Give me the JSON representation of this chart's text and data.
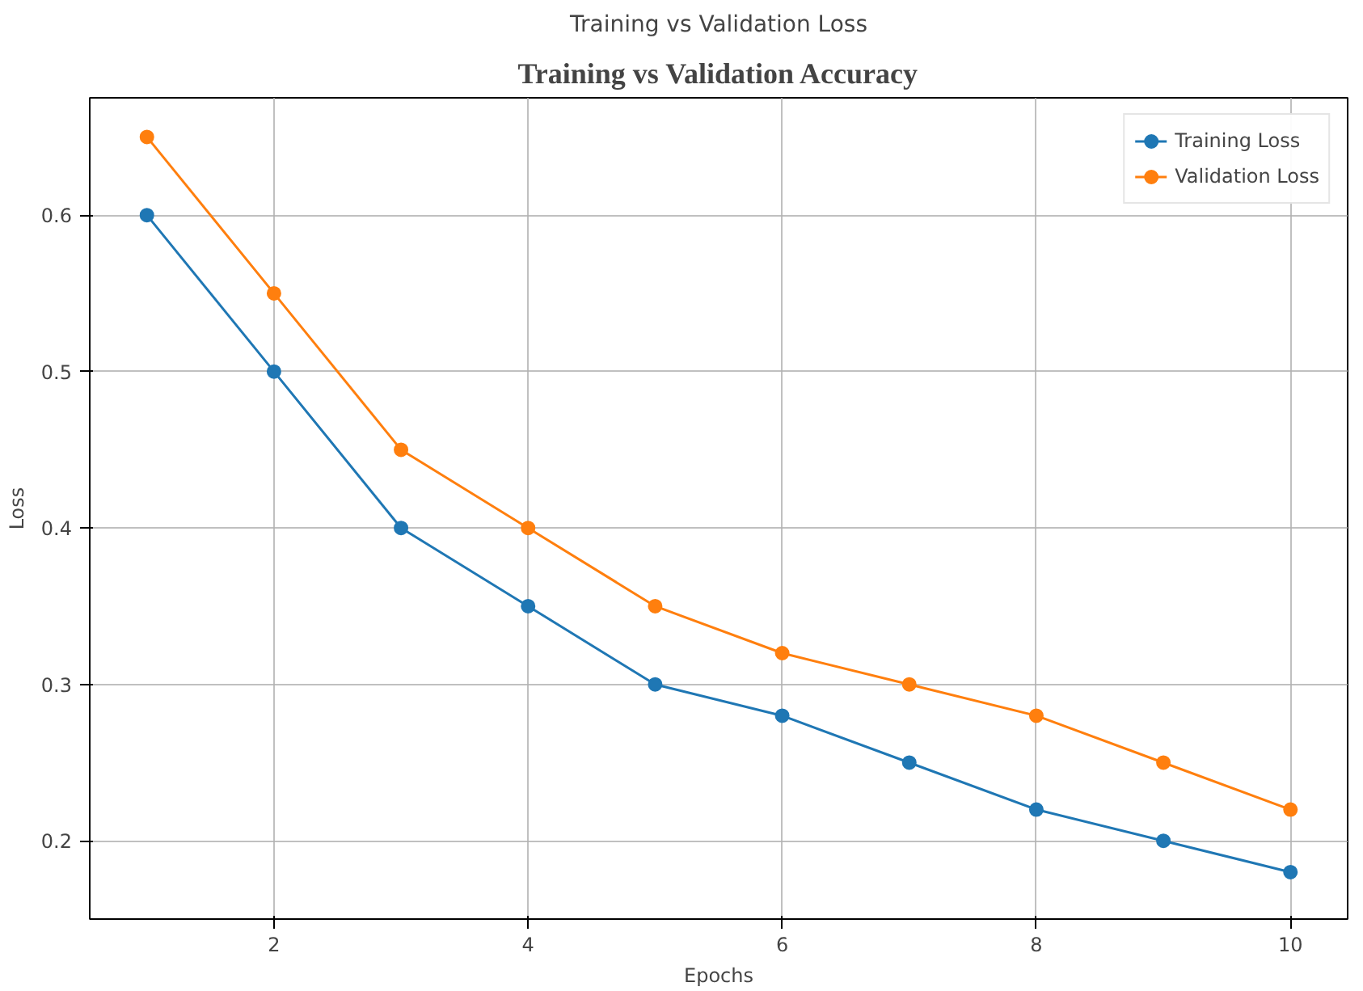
{
  "chart_data": {
    "type": "line",
    "title": "Training vs Validation Loss",
    "xlabel": "Epochs",
    "ylabel": "Loss",
    "annotations": [
      "Training vs Validation Accuracy"
    ],
    "x": [
      1,
      2,
      3,
      4,
      5,
      6,
      7,
      8,
      9,
      10
    ],
    "series": [
      {
        "name": "Training Loss",
        "color": "#1f77b4",
        "values": [
          0.6,
          0.5,
          0.4,
          0.35,
          0.3,
          0.28,
          0.25,
          0.22,
          0.2,
          0.18
        ]
      },
      {
        "name": "Validation Loss",
        "color": "#ff7f0e",
        "values": [
          0.65,
          0.55,
          0.45,
          0.4,
          0.35,
          0.32,
          0.3,
          0.28,
          0.25,
          0.22
        ]
      }
    ],
    "xlim": [
      0.55,
      10.45
    ],
    "ylim": [
      0.15,
      0.675
    ],
    "xticks": [
      2,
      4,
      6,
      8,
      10
    ],
    "yticks": [
      0.2,
      0.3,
      0.4,
      0.5,
      0.6
    ],
    "grid": true,
    "legend": "top right",
    "marker": "circle",
    "line_style": "solid"
  }
}
